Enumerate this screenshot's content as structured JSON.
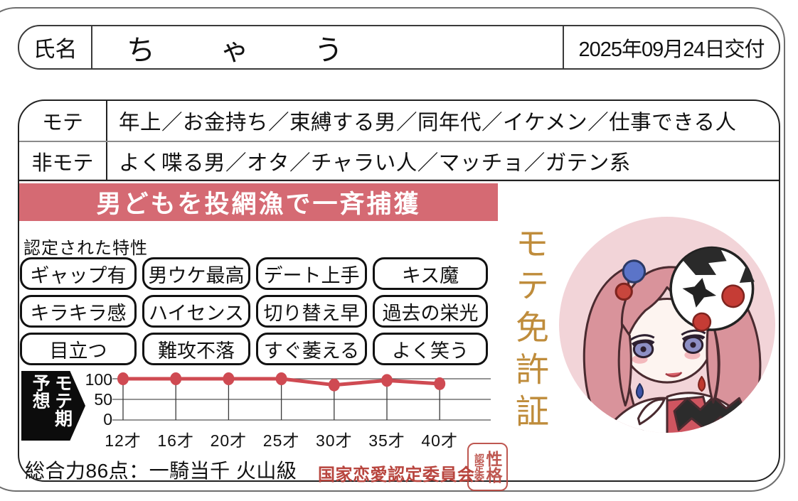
{
  "header": {
    "name_label": "氏名",
    "name_value": "ちゃう",
    "issue_date": "2025年09月24日交付"
  },
  "profile": {
    "mote_label": "モテ",
    "mote_value": "年上／お金持ち／束縛する男／同年代／イケメン／仕事できる人",
    "himote_label": "非モテ",
    "himote_value": "よく喋る男／オタ／チャラい人／マッチョ／ガテン系"
  },
  "banner": {
    "text": "男どもを投網漁で一斉捕獲",
    "bg_color": "#d56a73",
    "text_color": "#ffffff"
  },
  "traits": {
    "label": "認定された特性",
    "badges": [
      "ギャップ有",
      "男ウケ最高",
      "デート上手",
      "キス魔",
      "キラキラ感",
      "ハイセンス",
      "切り替え早",
      "過去の栄光",
      "目立つ",
      "難攻不落",
      "すぐ萎える",
      "よく笑う"
    ]
  },
  "chart_data": {
    "type": "line",
    "title": "モテ期予想",
    "axis_arrow_label_col_right": "モテ期",
    "axis_arrow_label_col_left": "予想",
    "categories": [
      "12才",
      "16才",
      "20才",
      "25才",
      "30才",
      "35才",
      "40才"
    ],
    "values": [
      100,
      100,
      100,
      100,
      85,
      96,
      88
    ],
    "yticks": [
      100,
      50,
      0
    ],
    "ylim": [
      0,
      100
    ],
    "grid": true,
    "legend": "none",
    "line_color": "#cf4a52",
    "grid_color": "#555555"
  },
  "footer": {
    "summary": "総合力86点：一騎当千 火山級",
    "committee": "国家恋愛認定委員会",
    "committee_color": "#b8453e",
    "stamp_col_right": "性格",
    "stamp_col_left": "認定委"
  },
  "side": {
    "vertical_title": "モテ免許証",
    "title_color": "#bf8c3b"
  },
  "avatar": {
    "bg_color": "#f2d4d8"
  }
}
